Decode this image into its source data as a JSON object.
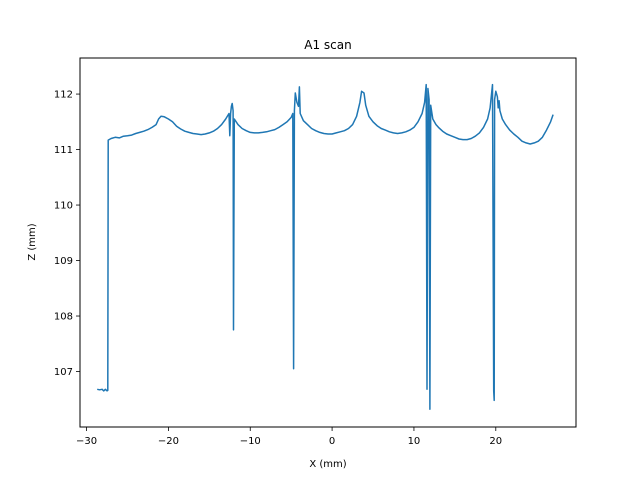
{
  "chart_data": {
    "type": "line",
    "title": "A1 scan",
    "xlabel": "X (mm)",
    "ylabel": "Z (mm)",
    "xlim": [
      -30.8,
      29.8
    ],
    "ylim": [
      106.0,
      112.65
    ],
    "xticks": [
      -30,
      -20,
      -10,
      0,
      10,
      20
    ],
    "yticks": [
      107,
      108,
      109,
      110,
      111,
      112
    ],
    "grid": false,
    "legend": "none",
    "series": [
      {
        "color": "#1f77b4",
        "points": [
          [
            -28.7,
            106.68
          ],
          [
            -28.4,
            106.67
          ],
          [
            -28.1,
            106.68
          ],
          [
            -27.9,
            106.65
          ],
          [
            -27.7,
            106.68
          ],
          [
            -27.5,
            106.65
          ],
          [
            -27.4,
            106.66
          ],
          [
            -27.35,
            111.17
          ],
          [
            -27.0,
            111.2
          ],
          [
            -26.5,
            111.22
          ],
          [
            -26.0,
            111.21
          ],
          [
            -25.5,
            111.24
          ],
          [
            -25.0,
            111.25
          ],
          [
            -24.5,
            111.26
          ],
          [
            -24.0,
            111.29
          ],
          [
            -23.5,
            111.31
          ],
          [
            -23.0,
            111.33
          ],
          [
            -22.5,
            111.36
          ],
          [
            -22.0,
            111.4
          ],
          [
            -21.5,
            111.45
          ],
          [
            -21.2,
            111.55
          ],
          [
            -20.9,
            111.6
          ],
          [
            -20.5,
            111.59
          ],
          [
            -20.0,
            111.55
          ],
          [
            -19.5,
            111.5
          ],
          [
            -19.0,
            111.42
          ],
          [
            -18.5,
            111.37
          ],
          [
            -18.0,
            111.33
          ],
          [
            -17.5,
            111.31
          ],
          [
            -17.0,
            111.29
          ],
          [
            -16.5,
            111.28
          ],
          [
            -16.0,
            111.27
          ],
          [
            -15.5,
            111.28
          ],
          [
            -15.0,
            111.3
          ],
          [
            -14.5,
            111.33
          ],
          [
            -14.0,
            111.38
          ],
          [
            -13.5,
            111.45
          ],
          [
            -13.0,
            111.55
          ],
          [
            -12.6,
            111.65
          ],
          [
            -12.5,
            111.25
          ],
          [
            -12.4,
            111.65
          ],
          [
            -12.3,
            111.78
          ],
          [
            -12.2,
            111.83
          ],
          [
            -12.1,
            111.7
          ],
          [
            -12.05,
            107.75
          ],
          [
            -11.95,
            111.55
          ],
          [
            -11.5,
            111.45
          ],
          [
            -11.0,
            111.38
          ],
          [
            -10.5,
            111.34
          ],
          [
            -10.0,
            111.31
          ],
          [
            -9.5,
            111.3
          ],
          [
            -9.0,
            111.3
          ],
          [
            -8.5,
            111.31
          ],
          [
            -8.0,
            111.32
          ],
          [
            -7.5,
            111.34
          ],
          [
            -7.0,
            111.36
          ],
          [
            -6.5,
            111.4
          ],
          [
            -6.0,
            111.45
          ],
          [
            -5.5,
            111.5
          ],
          [
            -5.0,
            111.58
          ],
          [
            -4.8,
            111.65
          ],
          [
            -4.7,
            107.05
          ],
          [
            -4.6,
            111.7
          ],
          [
            -4.5,
            112.02
          ],
          [
            -4.3,
            111.85
          ],
          [
            -4.1,
            111.78
          ],
          [
            -4.0,
            112.13
          ],
          [
            -3.9,
            111.65
          ],
          [
            -3.5,
            111.52
          ],
          [
            -3.0,
            111.45
          ],
          [
            -2.5,
            111.38
          ],
          [
            -2.0,
            111.34
          ],
          [
            -1.5,
            111.31
          ],
          [
            -1.0,
            111.29
          ],
          [
            -0.5,
            111.28
          ],
          [
            0.0,
            111.28
          ],
          [
            0.5,
            111.3
          ],
          [
            1.0,
            111.32
          ],
          [
            1.5,
            111.34
          ],
          [
            2.0,
            111.38
          ],
          [
            2.5,
            111.45
          ],
          [
            3.0,
            111.6
          ],
          [
            3.4,
            111.85
          ],
          [
            3.6,
            112.05
          ],
          [
            3.9,
            112.02
          ],
          [
            4.1,
            111.8
          ],
          [
            4.5,
            111.6
          ],
          [
            5.0,
            111.5
          ],
          [
            5.5,
            111.43
          ],
          [
            6.0,
            111.38
          ],
          [
            6.5,
            111.35
          ],
          [
            7.0,
            111.32
          ],
          [
            7.5,
            111.3
          ],
          [
            8.0,
            111.29
          ],
          [
            8.5,
            111.3
          ],
          [
            9.0,
            111.32
          ],
          [
            9.5,
            111.35
          ],
          [
            10.0,
            111.4
          ],
          [
            10.5,
            111.5
          ],
          [
            11.0,
            111.65
          ],
          [
            11.3,
            111.85
          ],
          [
            11.5,
            112.17
          ],
          [
            11.6,
            106.68
          ],
          [
            11.7,
            112.1
          ],
          [
            11.85,
            111.9
          ],
          [
            11.95,
            106.32
          ],
          [
            12.05,
            111.8
          ],
          [
            12.3,
            111.55
          ],
          [
            12.7,
            111.45
          ],
          [
            13.0,
            111.4
          ],
          [
            13.5,
            111.33
          ],
          [
            14.0,
            111.28
          ],
          [
            14.5,
            111.25
          ],
          [
            15.0,
            111.22
          ],
          [
            15.5,
            111.19
          ],
          [
            16.0,
            111.18
          ],
          [
            16.5,
            111.18
          ],
          [
            17.0,
            111.2
          ],
          [
            17.5,
            111.24
          ],
          [
            18.0,
            111.3
          ],
          [
            18.5,
            111.4
          ],
          [
            19.0,
            111.55
          ],
          [
            19.3,
            111.75
          ],
          [
            19.6,
            112.17
          ],
          [
            19.75,
            106.65
          ],
          [
            19.8,
            106.48
          ],
          [
            19.85,
            111.9
          ],
          [
            20.0,
            112.05
          ],
          [
            20.2,
            111.95
          ],
          [
            20.3,
            111.75
          ],
          [
            20.4,
            111.88
          ],
          [
            20.5,
            111.7
          ],
          [
            20.8,
            111.55
          ],
          [
            21.2,
            111.45
          ],
          [
            21.7,
            111.35
          ],
          [
            22.2,
            111.28
          ],
          [
            22.7,
            111.22
          ],
          [
            23.2,
            111.15
          ],
          [
            23.7,
            111.12
          ],
          [
            24.2,
            111.1
          ],
          [
            24.7,
            111.12
          ],
          [
            25.2,
            111.15
          ],
          [
            25.7,
            111.22
          ],
          [
            26.2,
            111.35
          ],
          [
            26.7,
            111.5
          ],
          [
            27.0,
            111.63
          ]
        ]
      }
    ]
  }
}
